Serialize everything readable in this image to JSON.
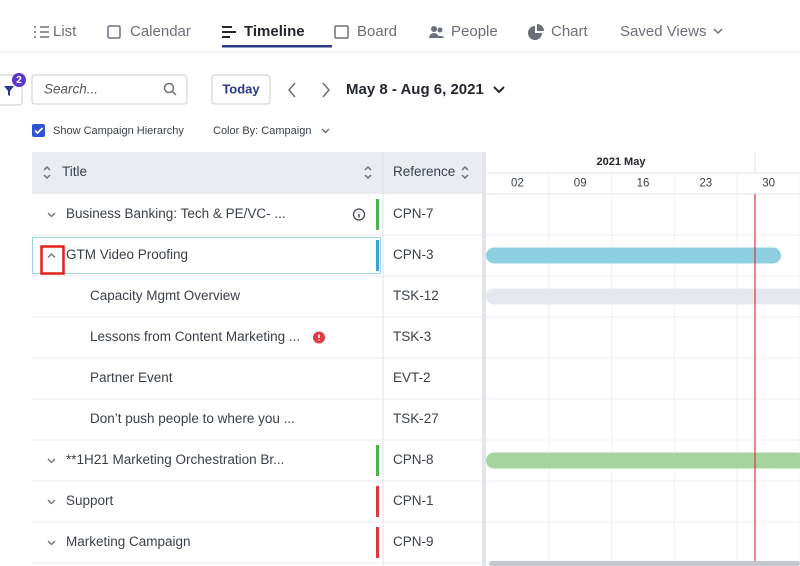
{
  "tabs": [
    "List",
    "Calendar",
    "Timeline",
    "Board",
    "People",
    "Chart",
    "Saved Views"
  ],
  "filter_count": "2",
  "search_placeholder": "Search...",
  "today_button": "Today",
  "date_range": "May 8 - Aug 6, 2021",
  "show_hierarchy": "Show Campaign Hierarchy",
  "color_by": "Color By: Campaign",
  "table": {
    "headers": [
      "Title",
      "Reference"
    ]
  },
  "timeline": {
    "month": "2021 May",
    "days": [
      "02",
      "09",
      "16",
      "23",
      "30"
    ]
  },
  "rows": [
    {
      "title": "Business Banking: Tech & PE/VC- ...",
      "reference": "CPN-7",
      "stripe": "#4caf50"
    },
    {
      "title": "GTM Video Proofing",
      "reference": "CPN-3",
      "stripe": "#3aa6c4",
      "bar": "#8fd0e0",
      "tasks": [
        {
          "title": "Capacity Mgmt Overview",
          "reference": "TSK-12",
          "bar": "#e6e8f0"
        },
        {
          "title": "Lessons from Content Marketing ...",
          "reference": "TSK-3"
        },
        {
          "title": "Partner Event",
          "reference": "EVT-2"
        },
        {
          "title": "Don’t push people to where you ...",
          "reference": "TSK-27"
        }
      ]
    },
    {
      "title": "**1H21 Marketing Orchestration Br...",
      "reference": "CPN-8",
      "stripe": "#4caf50",
      "bar": "#a6d49f"
    },
    {
      "title": "Support",
      "reference": "CPN-1",
      "stripe": "#d9363e"
    },
    {
      "title": "Marketing Campaign",
      "reference": "CPN-9",
      "stripe": "#d9363e"
    }
  ]
}
